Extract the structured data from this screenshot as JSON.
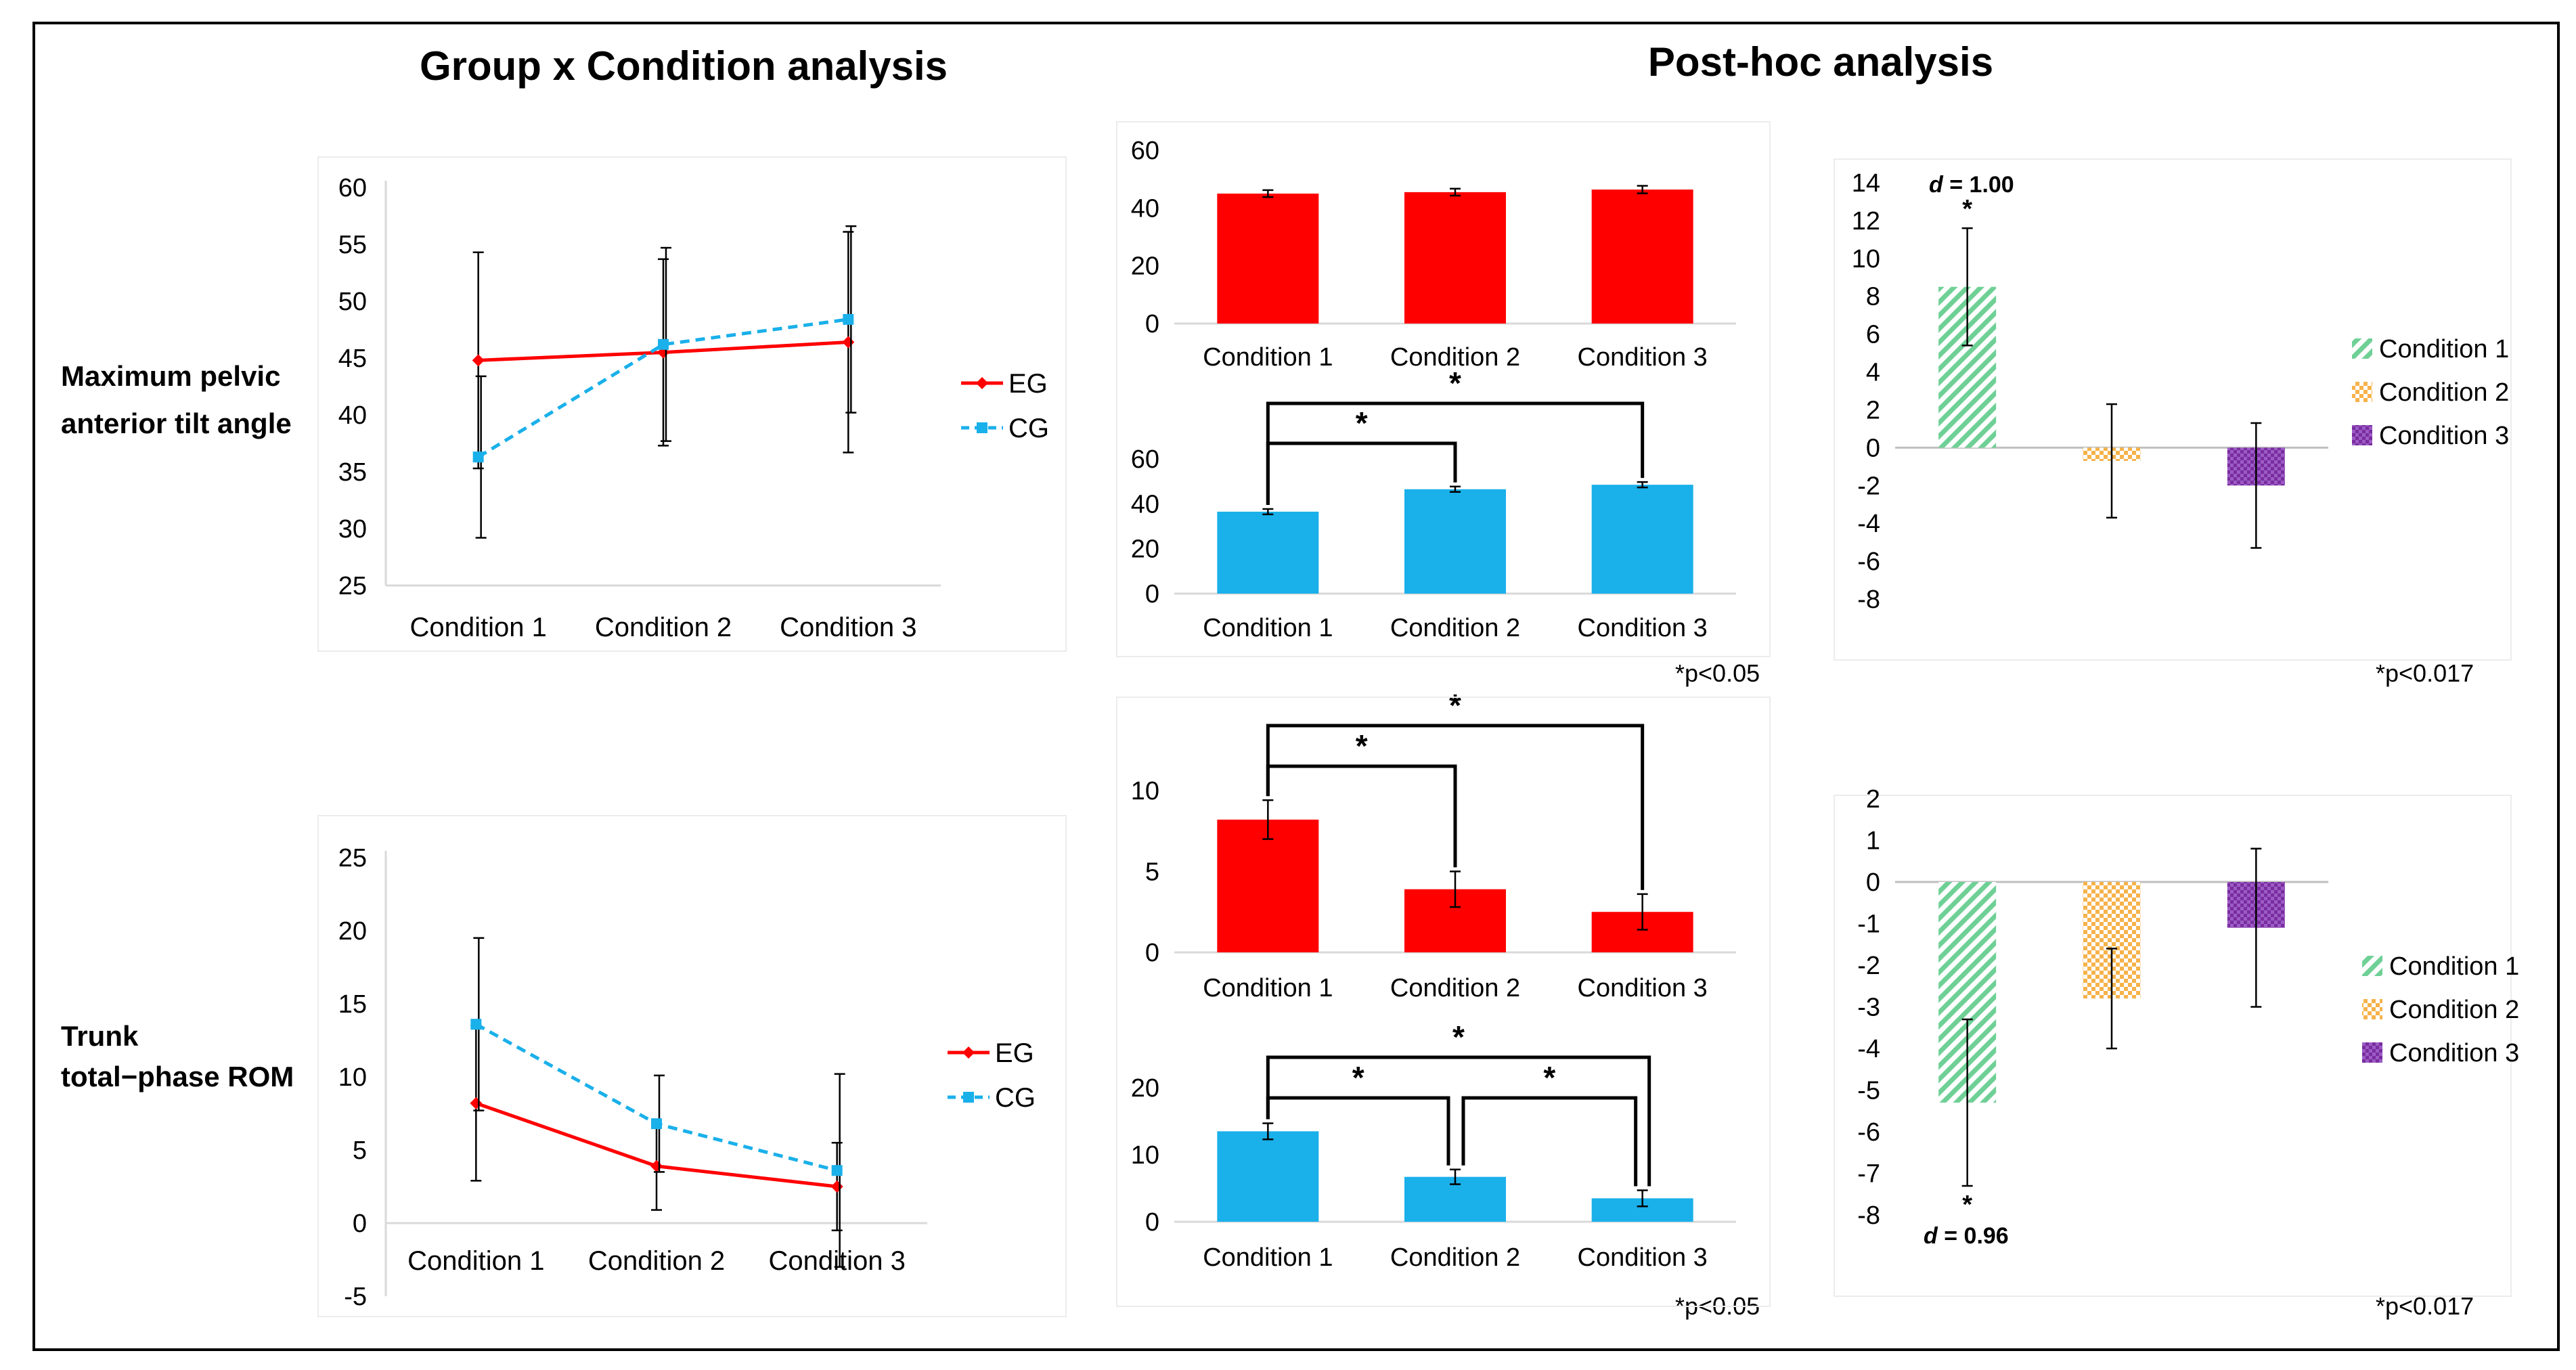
{
  "figure": {
    "left_title": "Group x Condition analysis",
    "right_title": "Post-hoc analysis",
    "row1_label_line1": "Maximum pelvic",
    "row1_label_line2": "anterior tilt angle",
    "row2_label_line1": "Trunk",
    "row2_label_line2": "total−phase ROM",
    "note_p005_a": "*p<0.05",
    "note_p0017_a": "*p<0.017",
    "note_p005_b": "*p<0.05",
    "note_p0017_b": "*p<0.017"
  },
  "colors": {
    "eg": "#ff0000",
    "cg": "#1ab0ea",
    "cond1": "#6fd096",
    "cond2": "#f6b24a",
    "cond3": "#7a2ca0",
    "axis": "#d9d9d9",
    "text": "#000000"
  },
  "chart_data": [
    {
      "id": "line_pelvic",
      "type": "line",
      "categories": [
        "Condition 1",
        "Condition 2",
        "Condition 3"
      ],
      "series": [
        {
          "name": "EG",
          "values": [
            44.8,
            45.5,
            46.4
          ],
          "errors": [
            9.5,
            8.2,
            9.7
          ]
        },
        {
          "name": "CG",
          "values": [
            36.3,
            46.2,
            48.4
          ],
          "errors": [
            7.1,
            8.5,
            8.2
          ]
        }
      ],
      "legend": [
        "EG",
        "CG"
      ],
      "yticks": [
        "60",
        "55",
        "50",
        "45",
        "40",
        "35",
        "30",
        "25"
      ],
      "ylim": [
        25,
        60
      ]
    },
    {
      "id": "line_trunk",
      "type": "line",
      "categories": [
        "Condition 1",
        "Condition 2",
        "Condition 3"
      ],
      "series": [
        {
          "name": "EG",
          "values": [
            8.2,
            3.9,
            2.5
          ],
          "errors": [
            5.3,
            3.0,
            3.0
          ]
        },
        {
          "name": "CG",
          "values": [
            13.6,
            6.8,
            3.6
          ],
          "errors": [
            5.9,
            3.3,
            6.6
          ]
        }
      ],
      "legend": [
        "EG",
        "CG"
      ],
      "yticks": [
        "25",
        "20",
        "15",
        "10",
        "5",
        "0",
        "-5"
      ],
      "ylim": [
        -5,
        25
      ]
    },
    {
      "id": "bar_pelvic_eg",
      "type": "bar",
      "categories": [
        "Condition 1",
        "Condition 2",
        "Condition 3"
      ],
      "values": [
        45,
        45.5,
        46.4
      ],
      "errors": [
        1.2,
        1.2,
        1.3
      ],
      "yticks": [
        "60",
        "40",
        "20",
        "0"
      ],
      "ylim": [
        0,
        60
      ]
    },
    {
      "id": "bar_pelvic_cg",
      "type": "bar",
      "categories": [
        "Condition 1",
        "Condition 2",
        "Condition 3"
      ],
      "values": [
        36.5,
        46.5,
        48.5
      ],
      "errors": [
        1.2,
        1.2,
        1.2
      ],
      "yticks": [
        "60",
        "40",
        "20",
        "0"
      ],
      "ylim": [
        0,
        60
      ],
      "significance": [
        {
          "from": "Condition 1",
          "to": "Condition 2",
          "label": "*"
        },
        {
          "from": "Condition 1",
          "to": "Condition 3",
          "label": "*"
        }
      ]
    },
    {
      "id": "bar_trunk_eg",
      "type": "bar",
      "categories": [
        "Condition 1",
        "Condition 2",
        "Condition 3"
      ],
      "values": [
        8.2,
        3.9,
        2.5
      ],
      "errors": [
        1.2,
        1.1,
        1.1
      ],
      "yticks": [
        "10",
        "5",
        "0"
      ],
      "ylim": [
        0,
        12
      ],
      "significance": [
        {
          "from": "Condition 1",
          "to": "Condition 2",
          "label": "*"
        },
        {
          "from": "Condition 1",
          "to": "Condition 3",
          "label": "*"
        }
      ]
    },
    {
      "id": "bar_trunk_cg",
      "type": "bar",
      "categories": [
        "Condition 1",
        "Condition 2",
        "Condition 3"
      ],
      "values": [
        13.5,
        6.7,
        3.5
      ],
      "errors": [
        1.2,
        1.1,
        1.2
      ],
      "yticks": [
        "20",
        "10",
        "0"
      ],
      "ylim": [
        0,
        20
      ],
      "significance": [
        {
          "from": "Condition 1",
          "to": "Condition 2",
          "label": "*"
        },
        {
          "from": "Condition 2",
          "to": "Condition 3",
          "label": "*"
        },
        {
          "from": "Condition 1",
          "to": "Condition 3",
          "label": "*"
        }
      ]
    },
    {
      "id": "diff_pelvic",
      "type": "bar",
      "categories": [
        "Condition 1",
        "Condition 2",
        "Condition 3"
      ],
      "values": [
        8.5,
        -0.7,
        -2.0
      ],
      "errors": [
        3.1,
        3.0,
        3.3
      ],
      "yticks": [
        "14",
        "12",
        "10",
        "8",
        "6",
        "4",
        "2",
        "0",
        "-2",
        "-4",
        "-6",
        "-8"
      ],
      "ylim": [
        -8,
        14
      ],
      "legend": [
        "Condition 1",
        "Condition 2",
        "Condition 3"
      ],
      "annotations": {
        "star": "*",
        "effect_d": "d",
        "effect_value": " = 1.00"
      }
    },
    {
      "id": "diff_trunk",
      "type": "bar",
      "categories": [
        "Condition 1",
        "Condition 2",
        "Condition 3"
      ],
      "values": [
        -5.3,
        -2.8,
        -1.1
      ],
      "errors": [
        2.0,
        1.2,
        1.9
      ],
      "yticks": [
        "2",
        "1",
        "0",
        "-1",
        "-2",
        "-3",
        "-4",
        "-5",
        "-6",
        "-7",
        "-8"
      ],
      "ylim": [
        -8,
        2
      ],
      "legend": [
        "Condition 1",
        "Condition 2",
        "Condition 3"
      ],
      "annotations": {
        "star": "*",
        "effect_d": "d",
        "effect_value": " = 0.96"
      }
    }
  ]
}
